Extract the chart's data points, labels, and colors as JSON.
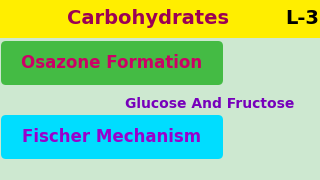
{
  "bg_color": "#cde8d0",
  "header_bg": "#ffee00",
  "header_text": "Carbohydrates",
  "header_color": "#9b0055",
  "badge_text": "L-3",
  "badge_color": "#000000",
  "pill1_text": "Osazone Formation",
  "pill1_bg": "#44bb44",
  "pill1_text_color": "#cc0066",
  "middle_text": "Glucose And Fructose",
  "middle_color": "#7700bb",
  "pill2_text": "Fischer Mechanism",
  "pill2_bg": "#00ddff",
  "pill2_text_color": "#9900cc",
  "figwidth": 3.2,
  "figheight": 1.8,
  "dpi": 100
}
